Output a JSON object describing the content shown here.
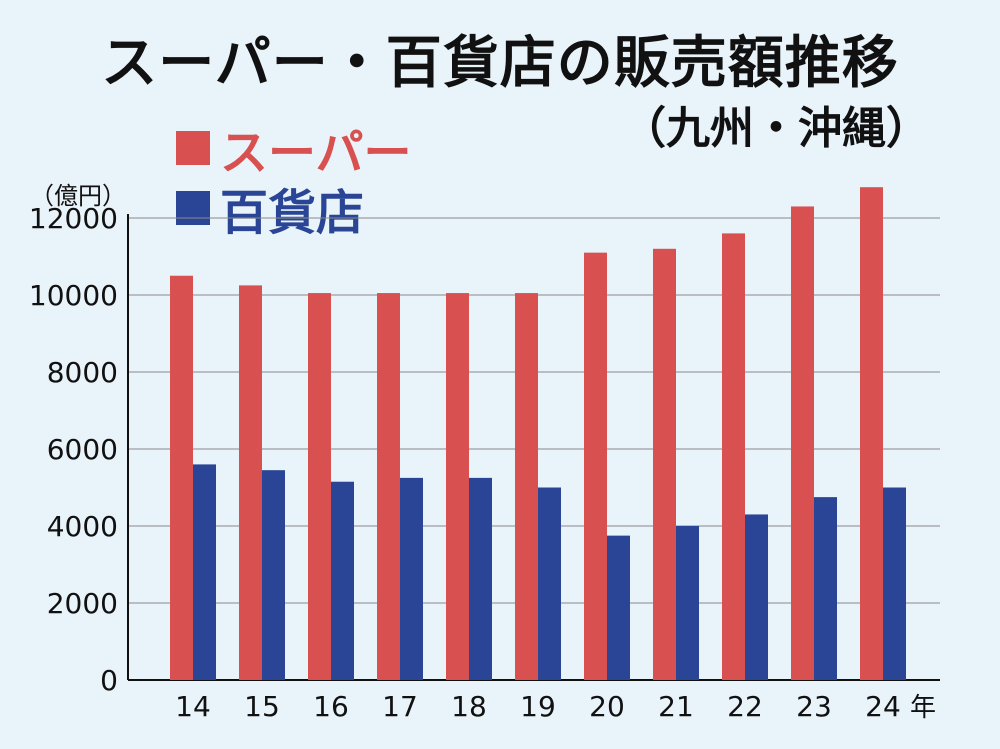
{
  "chart_data": {
    "type": "bar",
    "title": "スーパー・百貨店の販売額推移",
    "subtitle": "（九州・沖縄）",
    "unit": "（億円）",
    "categories": [
      "14",
      "15",
      "16",
      "17",
      "18",
      "19",
      "20",
      "21",
      "22",
      "23",
      "24"
    ],
    "x_unit": "年",
    "series": [
      {
        "name": "スーパー",
        "color": "#d85050",
        "values": [
          10500,
          10250,
          10050,
          10050,
          10050,
          10050,
          11100,
          11200,
          11600,
          12300,
          12800
        ]
      },
      {
        "name": "百貨店",
        "color": "#2a4596",
        "values": [
          5600,
          5450,
          5150,
          5250,
          5250,
          5000,
          3750,
          4000,
          4300,
          4750,
          5000
        ]
      }
    ],
    "ylim": [
      0,
      12000
    ],
    "yticks": [
      "0",
      "2000",
      "4000",
      "6000",
      "8000",
      "10000",
      "12000"
    ],
    "grid": true,
    "legend": "top-left"
  }
}
